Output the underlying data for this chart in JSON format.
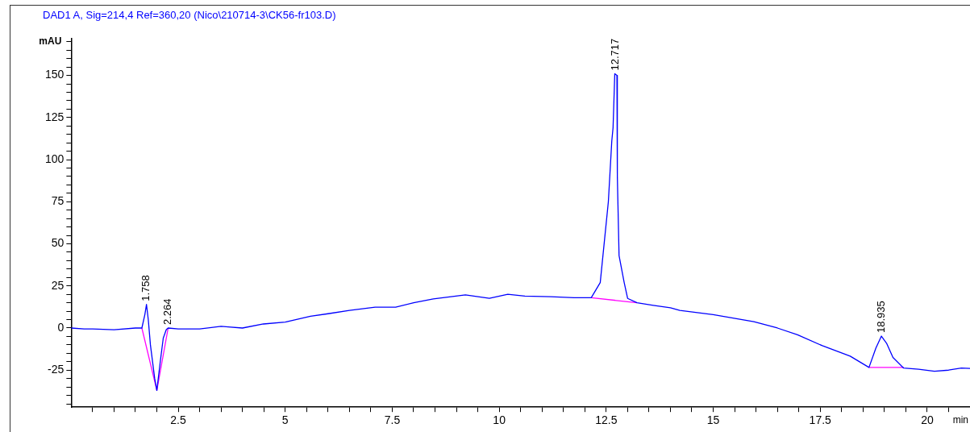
{
  "chart_data": {
    "type": "line",
    "title": "DAD1 A, Sig=214,4 Ref=360,20 (Nico\\210714-3\\CK56-fr103.D)",
    "xlabel": "min",
    "ylabel": "mAU",
    "xlim": [
      0,
      21
    ],
    "ylim": [
      -47,
      172
    ],
    "grid": false,
    "legend": false,
    "marker": "none",
    "line_style": "solid",
    "xticks": [
      {
        "value": 0.5,
        "label": null
      },
      {
        "value": 1,
        "label": null
      },
      {
        "value": 1.5,
        "label": null
      },
      {
        "value": 2,
        "label": null
      },
      2.5,
      {
        "value": 3,
        "label": null
      },
      {
        "value": 3.5,
        "label": null
      },
      {
        "value": 4,
        "label": null
      },
      {
        "value": 4.5,
        "label": null
      },
      5,
      {
        "value": 5.5,
        "label": null
      },
      {
        "value": 6,
        "label": null
      },
      {
        "value": 6.5,
        "label": null
      },
      {
        "value": 7,
        "label": null
      },
      7.5,
      {
        "value": 8,
        "label": null
      },
      {
        "value": 8.5,
        "label": null
      },
      {
        "value": 9,
        "label": null
      },
      {
        "value": 9.5,
        "label": null
      },
      10,
      {
        "value": 10.5,
        "label": null
      },
      {
        "value": 11,
        "label": null
      },
      {
        "value": 11.5,
        "label": null
      },
      {
        "value": 12,
        "label": null
      },
      12.5,
      {
        "value": 13,
        "label": null
      },
      {
        "value": 13.5,
        "label": null
      },
      {
        "value": 14,
        "label": null
      },
      {
        "value": 14.5,
        "label": null
      },
      15,
      {
        "value": 15.5,
        "label": null
      },
      {
        "value": 16,
        "label": null
      },
      {
        "value": 16.5,
        "label": null
      },
      {
        "value": 17,
        "label": null
      },
      17.5,
      {
        "value": 18,
        "label": null
      },
      {
        "value": 18.5,
        "label": null
      },
      {
        "value": 19,
        "label": null
      },
      {
        "value": 19.5,
        "label": null
      },
      20,
      {
        "value": 20.5,
        "label": null
      }
    ],
    "yticks": [
      {
        "value": -45,
        "label": null
      },
      {
        "value": -40,
        "label": null
      },
      {
        "value": -35,
        "label": null
      },
      {
        "value": -30,
        "label": null
      },
      -25,
      {
        "value": -20,
        "label": null
      },
      {
        "value": -15,
        "label": null
      },
      {
        "value": -10,
        "label": null
      },
      {
        "value": -5,
        "label": null
      },
      0,
      {
        "value": 5,
        "label": null
      },
      {
        "value": 10,
        "label": null
      },
      {
        "value": 15,
        "label": null
      },
      {
        "value": 20,
        "label": null
      },
      25,
      {
        "value": 30,
        "label": null
      },
      {
        "value": 35,
        "label": null
      },
      {
        "value": 40,
        "label": null
      },
      {
        "value": 45,
        "label": null
      },
      50,
      {
        "value": 55,
        "label": null
      },
      {
        "value": 60,
        "label": null
      },
      {
        "value": 65,
        "label": null
      },
      {
        "value": 70,
        "label": null
      },
      75,
      {
        "value": 80,
        "label": null
      },
      {
        "value": 85,
        "label": null
      },
      {
        "value": 90,
        "label": null
      },
      {
        "value": 95,
        "label": null
      },
      100,
      {
        "value": 105,
        "label": null
      },
      {
        "value": 110,
        "label": null
      },
      {
        "value": 115,
        "label": null
      },
      {
        "value": 120,
        "label": null
      },
      125,
      {
        "value": 130,
        "label": null
      },
      {
        "value": 135,
        "label": null
      },
      {
        "value": 140,
        "label": null
      },
      {
        "value": 145,
        "label": null
      },
      150,
      {
        "value": 155,
        "label": null
      },
      {
        "value": 160,
        "label": null
      },
      {
        "value": 165,
        "label": null
      },
      {
        "value": 170,
        "label": null
      }
    ],
    "series": [
      {
        "color": "#0000ff",
        "x": [
          0,
          0.3,
          0.5,
          1,
          1.5,
          1.65,
          1.72,
          1.758,
          1.8,
          1.85,
          1.95,
          2.0,
          2.08,
          2.15,
          2.22,
          2.264,
          2.5,
          3,
          3.5,
          3.67,
          4,
          4.49,
          5,
          5.59,
          6,
          6.5,
          7.1,
          7.58,
          8,
          8.46,
          9.21,
          9.77,
          10.2,
          10.6,
          11.2,
          11.75,
          12.15,
          12.36,
          12.55,
          12.63,
          12.66,
          12.7,
          12.75,
          12.76,
          12.8,
          12.92,
          13,
          13.22,
          13.6,
          14,
          14.22,
          15,
          15.95,
          16.5,
          16.97,
          17.55,
          18.2,
          18.64,
          18.8,
          18.93,
          19.05,
          19.2,
          19.45,
          19.8,
          20.17,
          20.5,
          20.8,
          21
        ],
        "values": [
          0,
          -0.5,
          -0.5,
          -1,
          0,
          0,
          8,
          14,
          5,
          -10,
          -30,
          -37,
          -20,
          -6,
          -1,
          0,
          -0.5,
          -0.5,
          1,
          0.7,
          0,
          2.4,
          3.5,
          7,
          8.5,
          10.5,
          12.4,
          12.4,
          15,
          17.3,
          19.7,
          17.6,
          20,
          19,
          18.6,
          18,
          18,
          27,
          75,
          111,
          119,
          151,
          150,
          90,
          43,
          27,
          17.6,
          15,
          13.5,
          12,
          10.5,
          8,
          3.8,
          0,
          -4,
          -10.5,
          -16.7,
          -23.4,
          -12,
          -4.8,
          -9,
          -17.5,
          -23.8,
          -24.5,
          -25.7,
          -25,
          -23.8,
          -24
        ]
      },
      {
        "color": "#ff00ff",
        "x": [
          1.65,
          2.0,
          2.264
        ],
        "values": [
          0,
          -37,
          0
        ]
      },
      {
        "color": "#ff00ff",
        "x": [
          12.15,
          13.22
        ],
        "values": [
          18,
          15
        ]
      },
      {
        "color": "#ff00ff",
        "x": [
          18.64,
          19.45
        ],
        "values": [
          -23.4,
          -23.4
        ]
      }
    ],
    "annotations": [
      {
        "text": "1.758",
        "x": 1.758,
        "y": 14
      },
      {
        "text": "2.264",
        "x": 2.264,
        "y": 0
      },
      {
        "text": "12.717",
        "x": 12.717,
        "y": 151
      },
      {
        "text": "18.935",
        "x": 18.935,
        "y": -4.8
      }
    ]
  }
}
